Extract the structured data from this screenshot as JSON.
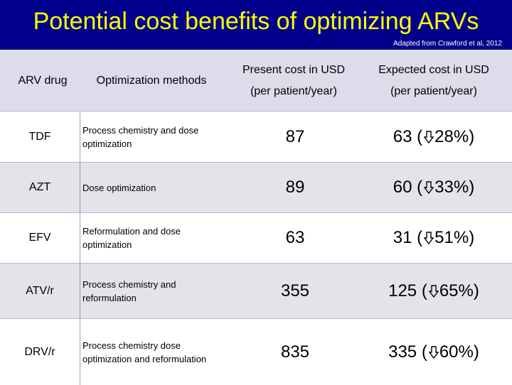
{
  "title": "Potential cost benefits of optimizing ARVs",
  "source_note": "Adapted from Crawford et al, 2012",
  "headers": {
    "drug": "ARV drug",
    "method": "Optimization methods",
    "present_line1": "Present cost  in USD",
    "present_line2": "(per patient/year)",
    "expected_line1": "Expected cost  in USD",
    "expected_line2": "(per patient/year)"
  },
  "arrow_icon": "down-arrow-icon",
  "rows": [
    {
      "drug": "TDF",
      "method": "Process chemistry and dose optimization",
      "present": "87",
      "expected": "63",
      "reduction": "28%"
    },
    {
      "drug": "AZT",
      "method": "Dose optimization",
      "present": "89",
      "expected": "60",
      "reduction": "33%"
    },
    {
      "drug": "EFV",
      "method": "Reformulation and dose optimization",
      "present": "63",
      "expected": "31",
      "reduction": "51%"
    },
    {
      "drug": "ATV/r",
      "method": "Process chemistry and reformulation",
      "present": "355",
      "expected": "125",
      "reduction": "65%"
    },
    {
      "drug": "DRV/r",
      "method": "Process chemistry dose optimization and reformulation",
      "present": "835",
      "expected": "335",
      "reduction": "60%"
    }
  ]
}
